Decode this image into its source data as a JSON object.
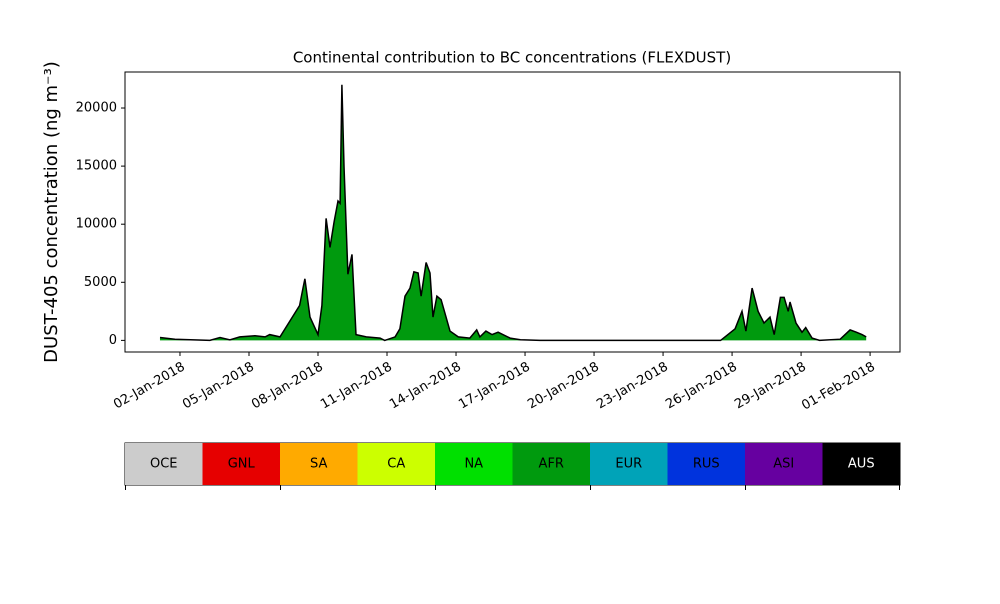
{
  "chart_data": {
    "type": "area",
    "title": "Continental contribution to BC concentrations (FLEXDUST)",
    "y_label": "DUST-405 concentration (ng m⁻³)",
    "series": [
      {
        "name": "AFR",
        "color": "#009a0e",
        "x": [
          1.13,
          1.78,
          3.3,
          3.74,
          4.17,
          4.6,
          5.26,
          5.7,
          5.9,
          6.35,
          7.2,
          7.35,
          7.43,
          7.65,
          8.0,
          8.17,
          8.35,
          8.52,
          8.7,
          8.87,
          8.96,
          9.04,
          9.13,
          9.3,
          9.48,
          9.65,
          10.1,
          10.7,
          10.9,
          11.35,
          11.56,
          11.78,
          12.0,
          12.17,
          12.35,
          12.48,
          12.7,
          12.87,
          13.0,
          13.17,
          13.35,
          13.74,
          14.1,
          14.6,
          14.9,
          15.04,
          15.3,
          15.57,
          15.83,
          16.35,
          16.8,
          17.65,
          25.5,
          26.13,
          26.43,
          26.6,
          26.87,
          27.13,
          27.39,
          27.65,
          27.83,
          28.1,
          28.26,
          28.44,
          28.52,
          28.78,
          29.04,
          29.2,
          29.48,
          29.8,
          30.7,
          31.13,
          31.4,
          31.65,
          31.83
        ],
        "values": [
          250,
          100,
          0,
          250,
          50,
          300,
          400,
          300,
          500,
          300,
          3000,
          4500,
          5300,
          2000,
          500,
          3000,
          10500,
          8000,
          10200,
          12000,
          11800,
          22000,
          15000,
          5700,
          7400,
          500,
          300,
          200,
          0,
          300,
          1000,
          3800,
          4500,
          5900,
          5800,
          3800,
          6700,
          5800,
          2000,
          3800,
          3500,
          800,
          300,
          200,
          900,
          300,
          800,
          500,
          700,
          200,
          50,
          0,
          0,
          1000,
          2500,
          800,
          4500,
          2500,
          1500,
          2000,
          500,
          3700,
          3700,
          2500,
          3300,
          1500,
          700,
          1100,
          200,
          0,
          100,
          900,
          700,
          500,
          300
        ]
      }
    ],
    "xlim": [
      -0.39,
      33.3
    ],
    "ylim": [
      -1000,
      23100
    ],
    "xticks": [
      {
        "value": 2,
        "label": "02-Jan-2018"
      },
      {
        "value": 5,
        "label": "05-Jan-2018"
      },
      {
        "value": 8,
        "label": "08-Jan-2018"
      },
      {
        "value": 11,
        "label": "11-Jan-2018"
      },
      {
        "value": 14,
        "label": "14-Jan-2018"
      },
      {
        "value": 17,
        "label": "17-Jan-2018"
      },
      {
        "value": 20,
        "label": "20-Jan-2018"
      },
      {
        "value": 23,
        "label": "23-Jan-2018"
      },
      {
        "value": 26,
        "label": "26-Jan-2018"
      },
      {
        "value": 29,
        "label": "29-Jan-2018"
      },
      {
        "value": 32,
        "label": "01-Feb-2018"
      }
    ],
    "yticks": [
      0,
      5000,
      10000,
      15000,
      20000
    ],
    "colorbar": {
      "labels": [
        "OCE",
        "GNL",
        "SA",
        "CA",
        "NA",
        "AFR",
        "EUR",
        "RUS",
        "ASI",
        "AUS"
      ],
      "colors": [
        "#cccccc",
        "#e60000",
        "#ffaa00",
        "#ccff00",
        "#00e000",
        "#009a0e",
        "#00a3b8",
        "#0033dd",
        "#6600a0",
        "#000000"
      ]
    }
  }
}
